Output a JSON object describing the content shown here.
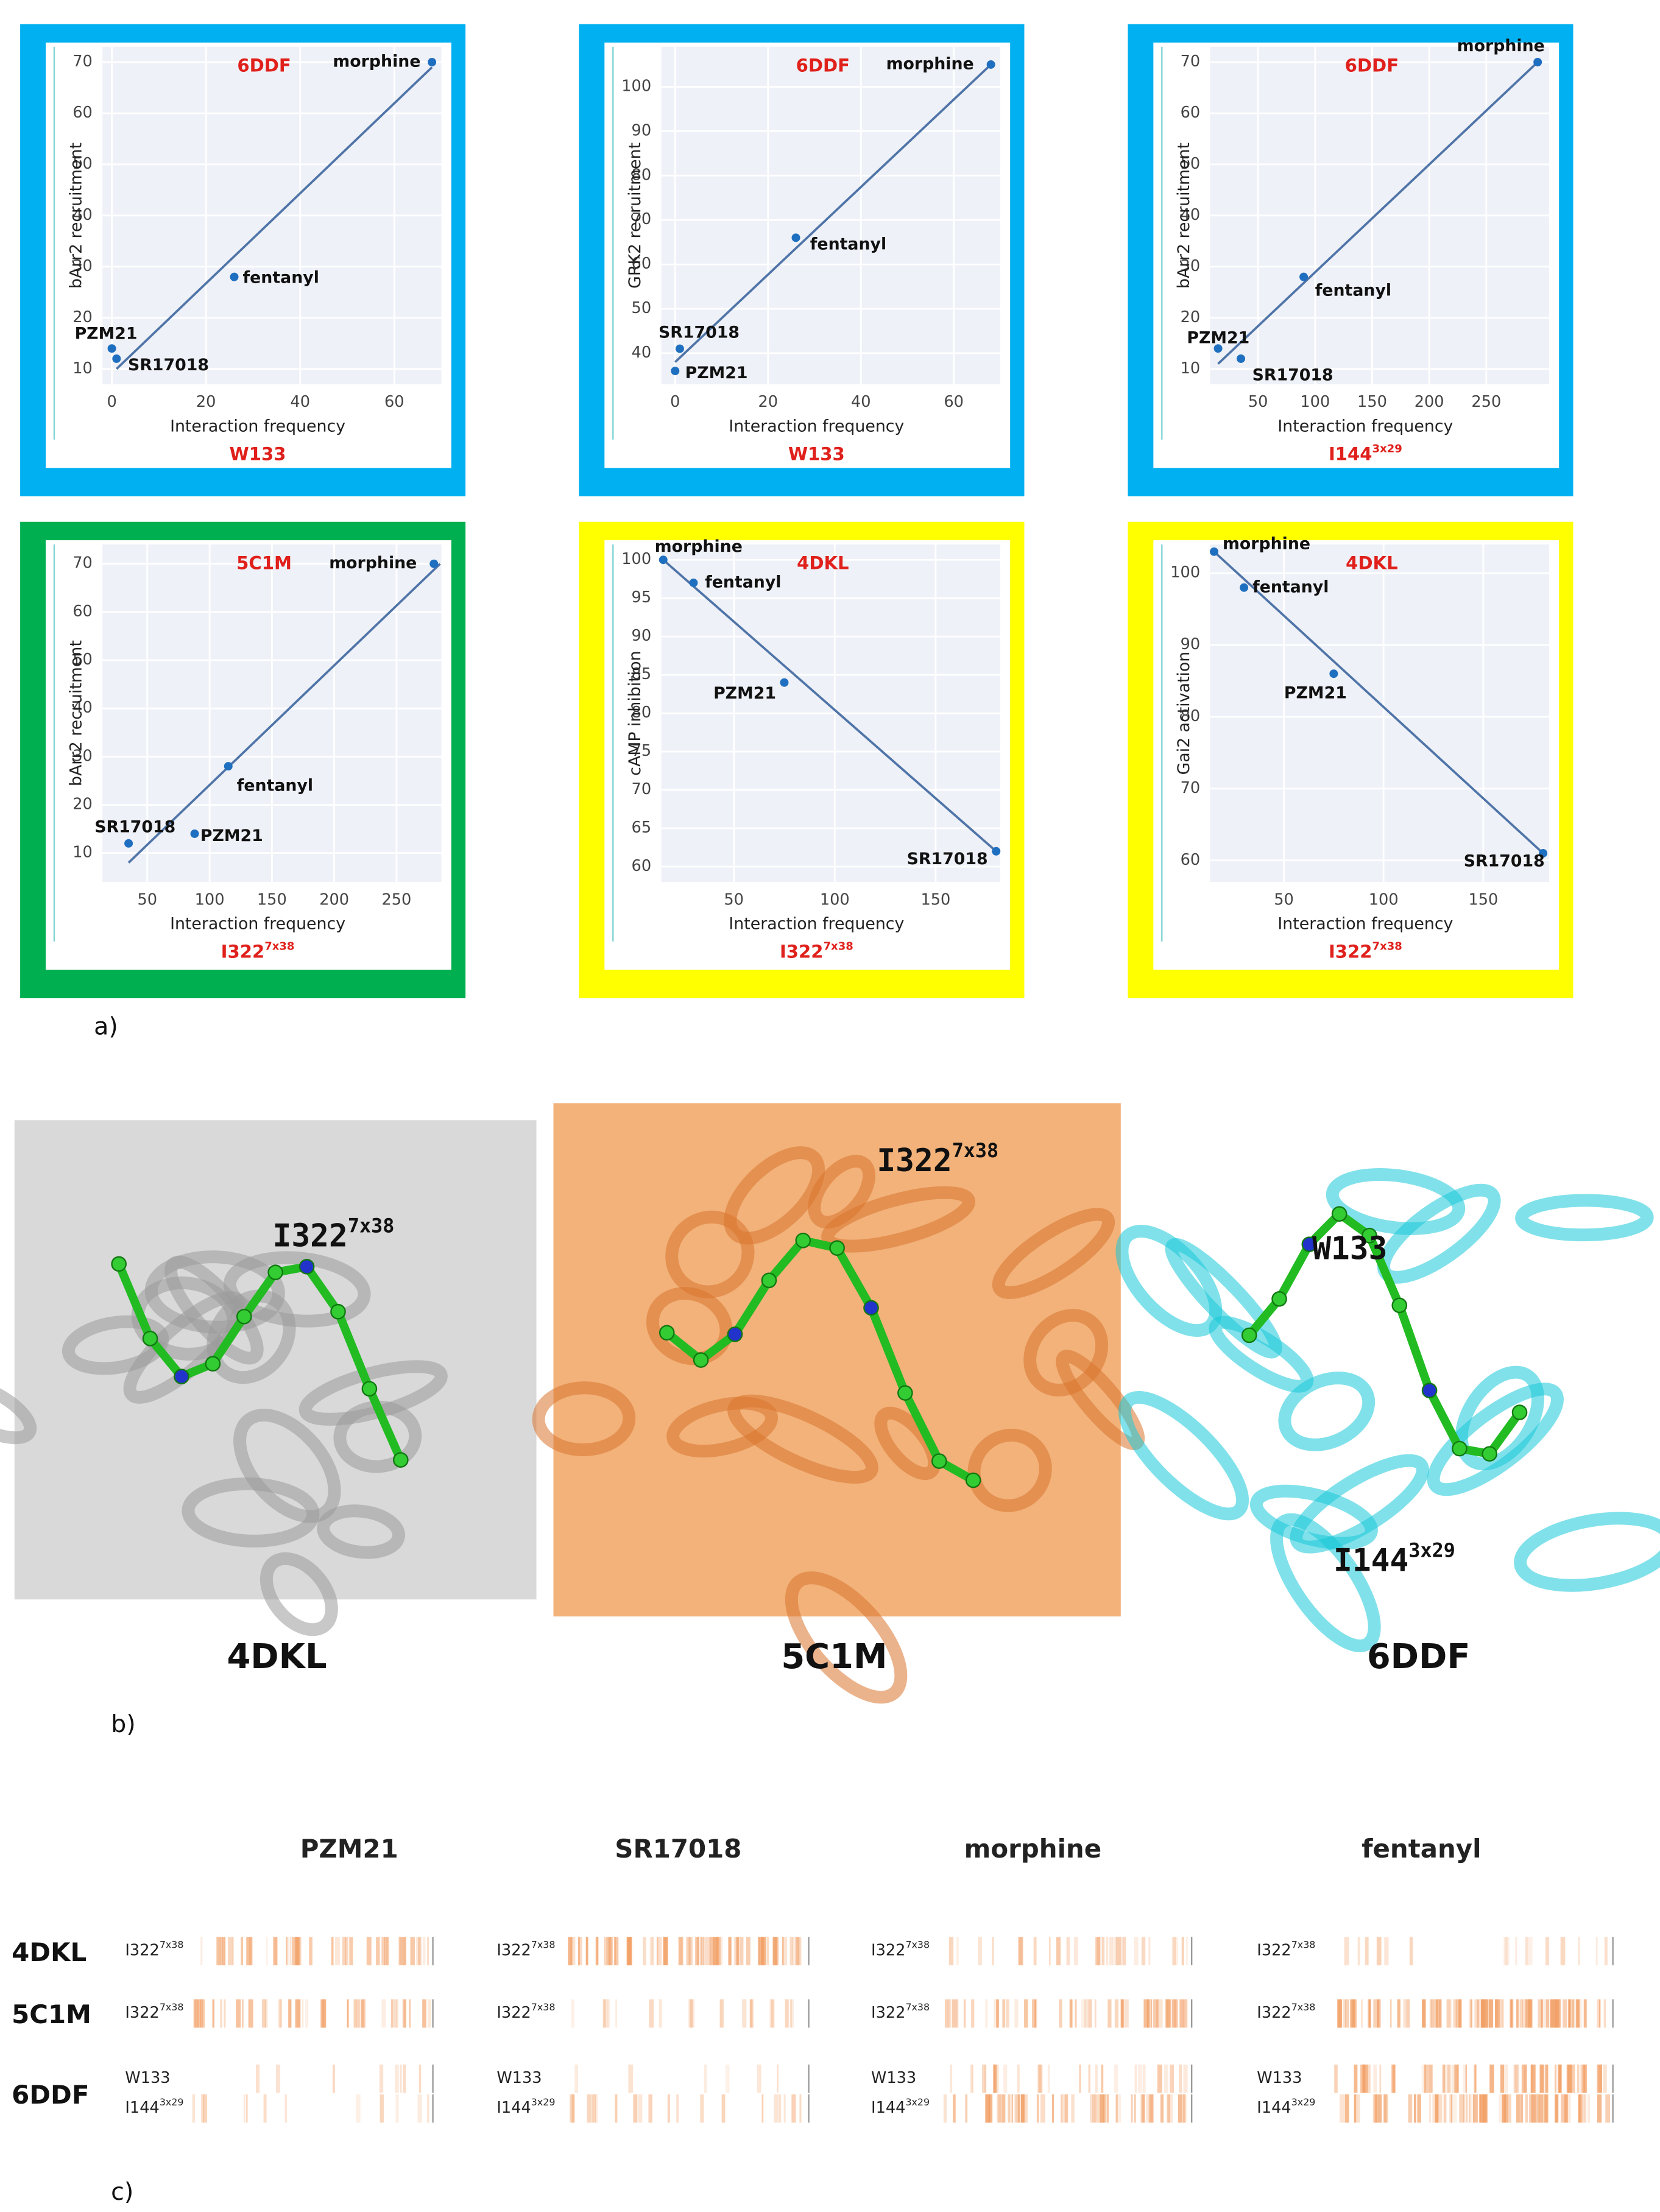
{
  "chart_data": [
    {
      "type": "scatter",
      "title": "6DDF",
      "xlabel": "Interaction frequency",
      "ylabel": "bArr2 recruitment",
      "residue": "W133",
      "labels": [
        "morphine",
        "fentanyl",
        "PZM21",
        "SR17018"
      ],
      "x": [
        68,
        26,
        0,
        1
      ],
      "y": [
        70,
        28,
        14,
        12
      ],
      "fit_line": {
        "x": [
          1,
          68
        ],
        "y": [
          10,
          69
        ]
      },
      "xlim": [
        -2,
        70
      ],
      "ylim": [
        7,
        73
      ],
      "xticks": [
        0,
        20,
        40,
        60
      ],
      "yticks": [
        10,
        20,
        30,
        40,
        50,
        60,
        70
      ],
      "grid": true,
      "color": "#1f6fc0",
      "line_color": "#4f74a8",
      "frame_color": "#00b0f0"
    },
    {
      "type": "scatter",
      "title": "6DDF",
      "xlabel": "Interaction frequency",
      "ylabel": "GRK2 recruitment",
      "residue": "W133",
      "labels": [
        "morphine",
        "fentanyl",
        "SR17018",
        "PZM21"
      ],
      "x": [
        68,
        26,
        1,
        0
      ],
      "y": [
        105,
        66,
        41,
        36
      ],
      "fit_line": {
        "x": [
          0,
          68
        ],
        "y": [
          38,
          105
        ]
      },
      "xlim": [
        -3,
        70
      ],
      "ylim": [
        33,
        109
      ],
      "xticks": [
        0,
        20,
        40,
        60
      ],
      "yticks": [
        40,
        50,
        60,
        70,
        80,
        90,
        100
      ],
      "grid": true,
      "color": "#1f6fc0",
      "line_color": "#4f74a8",
      "frame_color": "#00b0f0"
    },
    {
      "type": "scatter",
      "title": "6DDF",
      "xlabel": "Interaction frequency",
      "ylabel": "bArr2 recruitment",
      "residue": "I144",
      "residue_sup": "3x29",
      "labels": [
        "morphine",
        "fentanyl",
        "PZM21",
        "SR17018"
      ],
      "x": [
        295,
        90,
        15,
        35
      ],
      "y": [
        70,
        28,
        14,
        12
      ],
      "fit_line": {
        "x": [
          15,
          295
        ],
        "y": [
          11,
          70
        ]
      },
      "xlim": [
        8,
        305
      ],
      "ylim": [
        7,
        73
      ],
      "xticks": [
        50,
        100,
        150,
        200,
        250
      ],
      "yticks": [
        10,
        20,
        30,
        40,
        50,
        60,
        70
      ],
      "grid": true,
      "color": "#1f6fc0",
      "line_color": "#4f74a8",
      "frame_color": "#00b0f0"
    },
    {
      "type": "scatter",
      "title": "5C1M",
      "xlabel": "Interaction frequency",
      "ylabel": "bArr2 recruitment",
      "residue": "I322",
      "residue_sup": "7x38",
      "labels": [
        "morphine",
        "fentanyl",
        "PZM21",
        "SR17018"
      ],
      "x": [
        280,
        115,
        88,
        35
      ],
      "y": [
        70,
        28,
        14,
        12
      ],
      "fit_line": {
        "x": [
          35,
          285
        ],
        "y": [
          8,
          70
        ]
      },
      "xlim": [
        14,
        286
      ],
      "ylim": [
        4,
        74
      ],
      "xticks": [
        50,
        100,
        150,
        200,
        250
      ],
      "yticks": [
        10,
        20,
        30,
        40,
        50,
        60,
        70
      ],
      "grid": true,
      "color": "#1f6fc0",
      "line_color": "#4f74a8",
      "frame_color": "#00b050"
    },
    {
      "type": "scatter",
      "title": "4DKL",
      "xlabel": "Interaction frequency",
      "ylabel": "cAMP inhibition",
      "residue": "I322",
      "residue_sup": "7x38",
      "labels": [
        "morphine",
        "fentanyl",
        "PZM21",
        "SR17018"
      ],
      "x": [
        15,
        30,
        75,
        180
      ],
      "y": [
        100,
        97,
        84,
        62
      ],
      "fit_line": {
        "x": [
          15,
          180
        ],
        "y": [
          100,
          62
        ]
      },
      "xlim": [
        14,
        182
      ],
      "ylim": [
        58,
        102
      ],
      "xticks": [
        50,
        100,
        150
      ],
      "yticks": [
        60,
        65,
        70,
        75,
        80,
        85,
        90,
        95,
        100
      ],
      "grid": true,
      "color": "#1f6fc0",
      "line_color": "#4f74a8",
      "frame_color": "#ffff00"
    },
    {
      "type": "scatter",
      "title": "4DKL",
      "xlabel": "Interaction frequency",
      "ylabel": "Gai2 activation",
      "residue": "I322",
      "residue_sup": "7x38",
      "labels": [
        "morphine",
        "fentanyl",
        "PZM21",
        "SR17018"
      ],
      "x": [
        15,
        30,
        75,
        180
      ],
      "y": [
        103,
        98,
        86,
        61
      ],
      "fit_line": {
        "x": [
          15,
          180
        ],
        "y": [
          103,
          61
        ]
      },
      "xlim": [
        13,
        183
      ],
      "ylim": [
        57,
        104
      ],
      "xticks": [
        50,
        100,
        150
      ],
      "yticks": [
        60,
        70,
        80,
        90,
        100
      ],
      "grid": true,
      "color": "#1f6fc0",
      "line_color": "#4f74a8",
      "frame_color": "#ffff00"
    }
  ],
  "panel_labels": [
    "a)",
    "b)",
    "c)"
  ],
  "structures": [
    {
      "label": "4DKL",
      "residues": [
        {
          "name": "I322",
          "sup": "7x38"
        }
      ]
    },
    {
      "label": "5C1M",
      "residues": [
        {
          "name": "I322",
          "sup": "7x38"
        }
      ]
    },
    {
      "label": "6DDF",
      "residues": [
        {
          "name": "W133"
        },
        {
          "name": "I144",
          "sup": "3x29"
        }
      ]
    }
  ],
  "fingerprints": {
    "columns": [
      "PZM21",
      "SR17018",
      "morphine",
      "fentanyl"
    ],
    "rows": [
      {
        "label": "4DKL",
        "residues": [
          {
            "name": "I322",
            "sup": "7x38"
          }
        ]
      },
      {
        "label": "5C1M",
        "residues": [
          {
            "name": "I322",
            "sup": "7x38"
          }
        ]
      },
      {
        "label": "6DDF",
        "residues": [
          {
            "name": "W133"
          },
          {
            "name": "I144",
            "sup": "3x29"
          }
        ]
      }
    ]
  }
}
